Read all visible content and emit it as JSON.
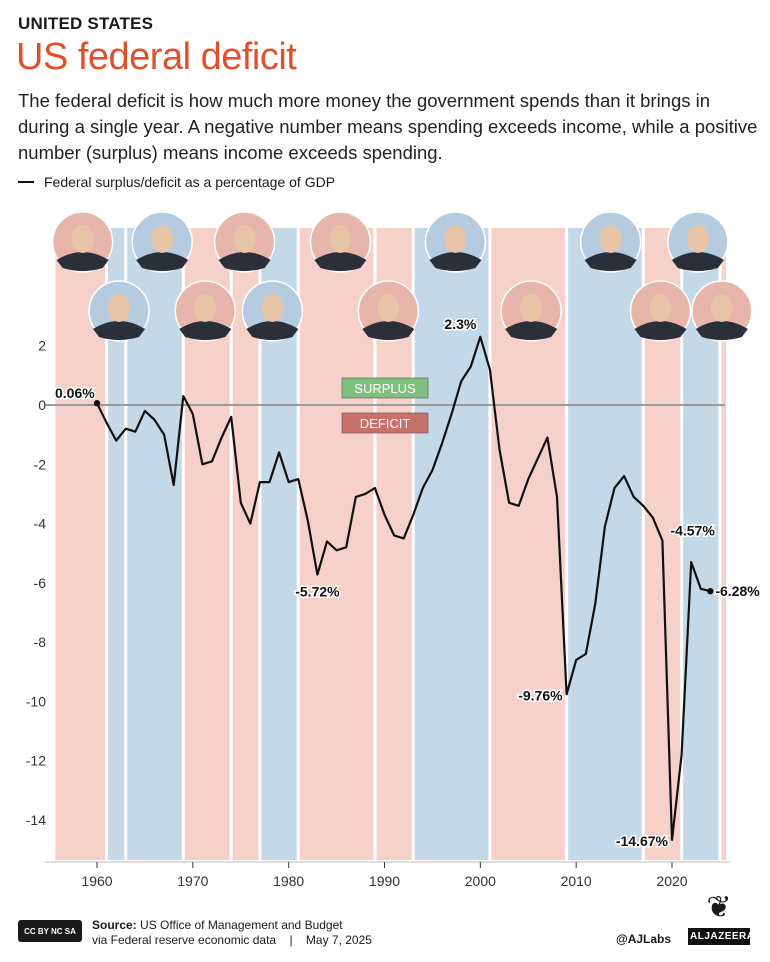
{
  "header": {
    "kicker": "UNITED STATES",
    "title": "US federal deficit",
    "subtitle": "The federal deficit is how much more money the government spends than it brings in during a single year. A negative number means spending exceeds income, while a positive number (surplus) means income exceeds spending."
  },
  "colors": {
    "republican": "#f6d1c9",
    "democrat": "#c5d8e7",
    "line": "#111111",
    "zero_line": "#9a9a9a",
    "title": "#e0502b",
    "surplus_tag": "#7ec07c",
    "deficit_tag": "#c8706a"
  },
  "tags": {
    "surplus": "SURPLUS",
    "deficit": "DEFICIT"
  },
  "presidents": [
    {
      "name": "Eisenhower",
      "party": "R",
      "start": 1955.5,
      "end": 1961,
      "portrait_year": 1958.5,
      "row": 0,
      "icon": "portrait-eisenhower"
    },
    {
      "name": "Kennedy",
      "party": "D",
      "start": 1961,
      "end": 1963,
      "portrait_year": 1962.3,
      "row": 1,
      "icon": "portrait-kennedy"
    },
    {
      "name": "Johnson",
      "party": "D",
      "start": 1963,
      "end": 1969,
      "portrait_year": 1966.8,
      "row": 0,
      "icon": "portrait-johnson"
    },
    {
      "name": "Nixon",
      "party": "R",
      "start": 1969,
      "end": 1974,
      "portrait_year": 1971.3,
      "row": 1,
      "icon": "portrait-nixon"
    },
    {
      "name": "Ford",
      "party": "R",
      "start": 1974,
      "end": 1977,
      "portrait_year": 1975.4,
      "row": 0,
      "icon": "portrait-ford"
    },
    {
      "name": "Carter",
      "party": "D",
      "start": 1977,
      "end": 1981,
      "portrait_year": 1978.3,
      "row": 1,
      "icon": "portrait-carter"
    },
    {
      "name": "Reagan",
      "party": "R",
      "start": 1981,
      "end": 1989,
      "portrait_year": 1985.4,
      "row": 0,
      "icon": "portrait-reagan"
    },
    {
      "name": "Bush",
      "party": "R",
      "start": 1989,
      "end": 1993,
      "portrait_year": 1990.4,
      "row": 1,
      "icon": "portrait-bush"
    },
    {
      "name": "Clinton",
      "party": "D",
      "start": 1993,
      "end": 2001,
      "portrait_year": 1997.4,
      "row": 0,
      "icon": "portrait-clinton"
    },
    {
      "name": "Bush",
      "party": "R",
      "start": 2001,
      "end": 2009,
      "portrait_year": 2005.3,
      "row": 1,
      "icon": "portrait-bush-jr"
    },
    {
      "name": "Obama",
      "party": "D",
      "start": 2009,
      "end": 2017,
      "portrait_year": 2013.6,
      "row": 0,
      "icon": "portrait-obama"
    },
    {
      "name": "Trump",
      "party": "R",
      "start": 2017,
      "end": 2021,
      "portrait_year": 2018.8,
      "row": 1,
      "icon": "portrait-trump"
    },
    {
      "name": "Biden",
      "party": "D",
      "start": 2021,
      "end": 2025,
      "portrait_year": 2022.7,
      "row": 0,
      "icon": "portrait-biden"
    },
    {
      "name": "Trump",
      "party": "R",
      "start": 2025,
      "end": 2025.8,
      "portrait_year": 2025.2,
      "row": 1,
      "icon": "portrait-trump-2"
    }
  ],
  "chart_data": {
    "type": "line",
    "title": "US federal deficit",
    "series": [
      {
        "name": "Federal surplus/deficit as a percentage of GDP",
        "x": [
          1960,
          1961,
          1962,
          1963,
          1964,
          1965,
          1966,
          1967,
          1968,
          1969,
          1970,
          1971,
          1972,
          1973,
          1974,
          1975,
          1976,
          1977,
          1978,
          1979,
          1980,
          1981,
          1982,
          1983,
          1984,
          1985,
          1986,
          1987,
          1988,
          1989,
          1990,
          1991,
          1992,
          1993,
          1994,
          1995,
          1996,
          1997,
          1998,
          1999,
          2000,
          2001,
          2002,
          2003,
          2004,
          2005,
          2006,
          2007,
          2008,
          2009,
          2010,
          2011,
          2012,
          2013,
          2014,
          2015,
          2016,
          2017,
          2018,
          2019,
          2020,
          2021,
          2022,
          2023,
          2024
        ],
        "y": [
          0.06,
          -0.6,
          -1.2,
          -0.8,
          -0.9,
          -0.2,
          -0.5,
          -1.0,
          -2.7,
          0.3,
          -0.3,
          -2.0,
          -1.9,
          -1.1,
          -0.4,
          -3.3,
          -4.0,
          -2.6,
          -2.6,
          -1.6,
          -2.6,
          -2.5,
          -3.9,
          -5.72,
          -4.6,
          -4.9,
          -4.8,
          -3.1,
          -3.0,
          -2.8,
          -3.7,
          -4.4,
          -4.5,
          -3.7,
          -2.8,
          -2.2,
          -1.3,
          -0.3,
          0.8,
          1.3,
          2.3,
          1.2,
          -1.5,
          -3.3,
          -3.4,
          -2.5,
          -1.8,
          -1.1,
          -3.1,
          -9.76,
          -8.6,
          -8.4,
          -6.7,
          -4.1,
          -2.8,
          -2.4,
          -3.1,
          -3.4,
          -3.8,
          -4.57,
          -14.67,
          -11.8,
          -5.3,
          -6.2,
          -6.28
        ]
      }
    ],
    "annotations": [
      {
        "x": 1960,
        "y": 0.06,
        "label": "0.06%"
      },
      {
        "x": 1983,
        "y": -5.72,
        "label": "-5.72%"
      },
      {
        "x": 2000,
        "y": 2.3,
        "label": "2.3%"
      },
      {
        "x": 2009,
        "y": -9.76,
        "label": "-9.76%"
      },
      {
        "x": 2020,
        "y": -14.67,
        "label": "-14.67%"
      },
      {
        "x": 2019,
        "y": -4.57,
        "label": "-4.57%"
      },
      {
        "x": 2024,
        "y": -6.28,
        "label": "-6.28%"
      }
    ],
    "xlim": [
      1955.5,
      2026.5
    ],
    "ylim": [
      -15.5,
      3
    ],
    "xticks": [
      1960,
      1970,
      1980,
      1990,
      2000,
      2010,
      2020
    ],
    "yticks": [
      2,
      0,
      -2,
      -4,
      -6,
      -8,
      -10,
      -12,
      -14
    ],
    "xlabel": "",
    "ylabel": "",
    "legend": "top-left",
    "grid": false
  },
  "footer": {
    "cc_badge": "CC BY NC SA",
    "source_label": "Source:",
    "source_text": "US Office of Management and Budget",
    "source_line2": "via Federal reserve economic data",
    "separator": "|",
    "date": "May 7, 2025",
    "handle": "@AJLabs",
    "logo_text": "ALJAZEERA"
  }
}
